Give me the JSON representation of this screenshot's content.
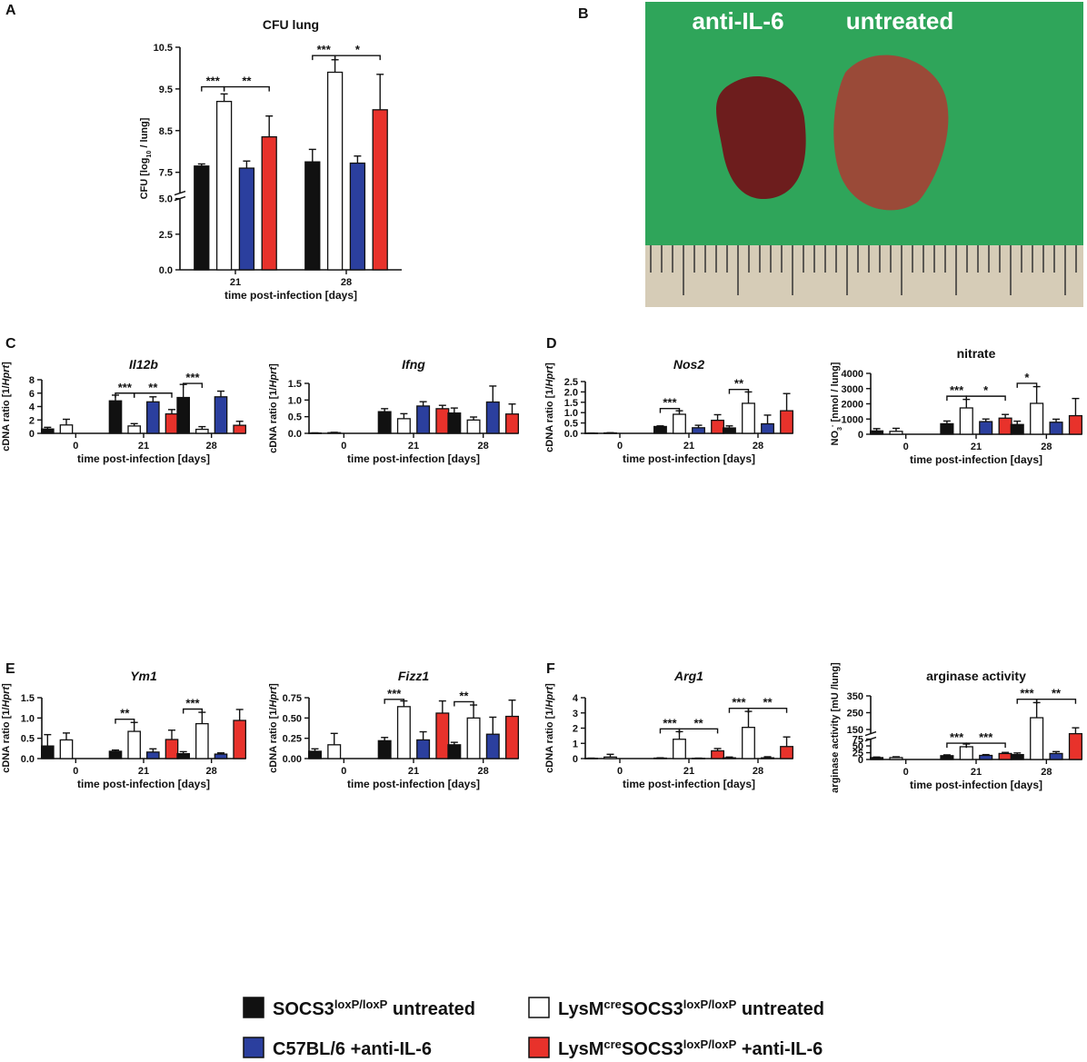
{
  "colors": {
    "ctrl": "#111111",
    "ko": "#ffffff",
    "wt": "#2b3f9e",
    "ko_il6": "#e8322b",
    "green": "#2fa55a",
    "ruler": "#d6ccb7",
    "tissue": "#6d1d1d"
  },
  "legend": [
    {
      "key": "ctrl",
      "text": "SOCS3loxP/loxP untreated",
      "parts": [
        [
          "SOCS3",
          ""
        ],
        [
          "loxP/loxP",
          "sup"
        ],
        [
          " untreated",
          ""
        ]
      ]
    },
    {
      "key": "ko",
      "text": "LysMcreSOCS3loxP/loxP untreated",
      "parts": [
        [
          "LysM",
          ""
        ],
        [
          "cre",
          "sup"
        ],
        [
          "SOCS3",
          ""
        ],
        [
          "loxP/loxP",
          "sup"
        ],
        [
          " untreated",
          ""
        ]
      ]
    },
    {
      "key": "wt",
      "text": "C57BL/6 +anti-IL-6",
      "parts": [
        [
          "C57BL/6 +anti-IL-6",
          ""
        ]
      ]
    },
    {
      "key": "ko_il6",
      "text": "LysMcreSOCS3loxP/loxP +anti-IL-6",
      "parts": [
        [
          "LysM",
          ""
        ],
        [
          "cre",
          "sup"
        ],
        [
          "SOCS3",
          ""
        ],
        [
          "loxP/loxP",
          "sup"
        ],
        [
          " +anti-IL-6",
          ""
        ]
      ]
    }
  ],
  "photo": {
    "panel": "B",
    "label_left": "anti-IL-6",
    "label_right": "untreated"
  },
  "chart_data": [
    {
      "id": "A",
      "panel": "A",
      "type": "bar",
      "title": "CFU lung",
      "italic_title": false,
      "ylabel": "CFU [log10 / lung]",
      "ylabel_parts": [
        [
          "CFU [log",
          ""
        ],
        [
          "10",
          "sub"
        ],
        [
          " / lung]",
          ""
        ]
      ],
      "xlabel": "time post-infection [days]",
      "categories": [
        "21",
        "28"
      ],
      "series_keys": [
        "ctrl",
        "ko",
        "wt",
        "ko_il6"
      ],
      "values": [
        [
          7.65,
          9.2,
          7.6,
          8.35
        ],
        [
          7.75,
          9.9,
          7.72,
          9.0
        ]
      ],
      "errors": [
        [
          0.05,
          0.18,
          0.17,
          0.5
        ],
        [
          0.3,
          0.3,
          0.17,
          0.85
        ]
      ],
      "ticks": [
        "0.0",
        "2.5",
        "5.0",
        "7.5",
        "8.5",
        "9.5",
        "10.5"
      ],
      "ylim": [
        0,
        10.5
      ],
      "broken_axis": [
        5.0,
        7.0
      ],
      "significance": [
        {
          "label": "***",
          "group": 0,
          "from": 0,
          "to": 1,
          "y": 9.55
        },
        {
          "label": "**",
          "group": 0,
          "from": 1,
          "to": 3,
          "y": 9.55
        },
        {
          "label": "***",
          "group": 1,
          "from": 0,
          "to": 1,
          "y": 10.3
        },
        {
          "label": "*",
          "group": 1,
          "from": 1,
          "to": 3,
          "y": 10.3
        }
      ]
    },
    {
      "id": "C1",
      "panel": "C",
      "type": "bar",
      "title": "Il12b",
      "italic_title": true,
      "ylabel": "cDNA ratio [1/Hprt]",
      "ylabel_parts": [
        [
          "cDNA ratio [1/",
          ""
        ],
        [
          "Hprt",
          "i"
        ],
        [
          "]",
          ""
        ]
      ],
      "xlabel": "time post-infection [days]",
      "categories": [
        "0",
        "21",
        "28"
      ],
      "series_keys": [
        "ctrl",
        "ko",
        "wt",
        "ko_il6"
      ],
      "values": [
        [
          0.65,
          1.25,
          null,
          null
        ],
        [
          4.85,
          1.1,
          4.7,
          2.9
        ],
        [
          5.35,
          0.6,
          5.45,
          1.2
        ]
      ],
      "errors": [
        [
          0.25,
          0.85,
          0,
          0
        ],
        [
          0.85,
          0.35,
          0.75,
          0.65
        ],
        [
          1.95,
          0.4,
          0.85,
          0.6
        ]
      ],
      "ticks": [
        "0",
        "2",
        "4",
        "6",
        "8"
      ],
      "ylim": [
        0,
        8
      ],
      "significance": [
        {
          "label": "***",
          "group": 1,
          "from": 0,
          "to": 1,
          "y": 6.0
        },
        {
          "label": "**",
          "group": 1,
          "from": 1,
          "to": 3,
          "y": 6.0
        },
        {
          "label": "***",
          "group": 2,
          "from": 0,
          "to": 1,
          "y": 7.45
        }
      ]
    },
    {
      "id": "C2",
      "panel": "",
      "type": "bar",
      "title": "Ifng",
      "italic_title": true,
      "ylabel": "cDNA ratio [1/Hprt]",
      "ylabel_parts": [
        [
          "cDNA ratio [1/",
          ""
        ],
        [
          "Hprt",
          "i"
        ],
        [
          "]",
          ""
        ]
      ],
      "xlabel": "time post-infection [days]",
      "categories": [
        "0",
        "21",
        "28"
      ],
      "series_keys": [
        "ctrl",
        "ko",
        "wt",
        "ko_il6"
      ],
      "values": [
        [
          0.01,
          0.02,
          null,
          null
        ],
        [
          0.65,
          0.44,
          0.82,
          0.74
        ],
        [
          0.61,
          0.4,
          0.94,
          0.58
        ]
      ],
      "errors": [
        [
          0.005,
          0.01,
          0,
          0
        ],
        [
          0.09,
          0.15,
          0.13,
          0.1
        ],
        [
          0.15,
          0.09,
          0.48,
          0.3
        ]
      ],
      "ticks": [
        "0.0",
        "0.5",
        "1.0",
        "1.5"
      ],
      "ylim": [
        0,
        1.5
      ],
      "significance": []
    },
    {
      "id": "D1",
      "panel": "D",
      "type": "bar",
      "title": "Nos2",
      "italic_title": true,
      "ylabel": "cDNA ratio [1/Hprt]",
      "ylabel_parts": [
        [
          "cDNA ratio [1/",
          ""
        ],
        [
          "Hprt",
          "i"
        ],
        [
          "]",
          ""
        ]
      ],
      "xlabel": "time post-infection [days]",
      "categories": [
        "0",
        "21",
        "28"
      ],
      "series_keys": [
        "ctrl",
        "ko",
        "wt",
        "ko_il6"
      ],
      "values": [
        [
          0.01,
          0.02,
          null,
          null
        ],
        [
          0.33,
          0.92,
          0.27,
          0.63
        ],
        [
          0.26,
          1.45,
          0.46,
          1.09
        ]
      ],
      "errors": [
        [
          0.005,
          0.01,
          0,
          0
        ],
        [
          0.03,
          0.17,
          0.12,
          0.27
        ],
        [
          0.1,
          0.55,
          0.42,
          0.83
        ]
      ],
      "ticks": [
        "0.0",
        "0.5",
        "1.0",
        "1.5",
        "2.0",
        "2.5"
      ],
      "ylim": [
        0,
        2.5
      ],
      "significance": [
        {
          "label": "***",
          "group": 1,
          "from": 0,
          "to": 1,
          "y": 1.2
        },
        {
          "label": "**",
          "group": 2,
          "from": 0,
          "to": 1,
          "y": 2.12
        }
      ]
    },
    {
      "id": "D2",
      "panel": "",
      "type": "bar",
      "title": "nitrate",
      "italic_title": false,
      "ylabel": "NO3- [nmol / lung]",
      "ylabel_parts": [
        [
          "NO",
          ""
        ],
        [
          "3",
          "sub"
        ],
        [
          "-",
          "sup"
        ],
        [
          " [nmol / lung]",
          ""
        ]
      ],
      "xlabel": "time post-infection [days]",
      "categories": [
        "0",
        "21",
        "28"
      ],
      "series_keys": [
        "ctrl",
        "ko",
        "wt",
        "ko_il6"
      ],
      "values": [
        [
          220,
          190,
          null,
          null
        ],
        [
          690,
          1730,
          830,
          1060
        ],
        [
          640,
          2030,
          790,
          1220
        ]
      ],
      "errors": [
        [
          150,
          200,
          0,
          0
        ],
        [
          180,
          560,
          170,
          240
        ],
        [
          220,
          1100,
          200,
          1130
        ]
      ],
      "ticks": [
        "0",
        "1000",
        "2000",
        "3000",
        "4000"
      ],
      "ylim": [
        0,
        4000
      ],
      "significance": [
        {
          "label": "***",
          "group": 1,
          "from": 0,
          "to": 1,
          "y": 2500
        },
        {
          "label": "*",
          "group": 1,
          "from": 1,
          "to": 3,
          "y": 2500
        },
        {
          "label": "*",
          "group": 2,
          "from": 0,
          "to": 1,
          "y": 3350
        }
      ]
    },
    {
      "id": "E1",
      "panel": "E",
      "type": "bar",
      "title": "Ym1",
      "italic_title": true,
      "ylabel": "cDNA ratio [1/Hprt]",
      "ylabel_parts": [
        [
          "cDNA ratio [1/",
          ""
        ],
        [
          "Hprt",
          "i"
        ],
        [
          "]",
          ""
        ]
      ],
      "xlabel": "time post-infection [days]",
      "categories": [
        "0",
        "21",
        "28"
      ],
      "series_keys": [
        "ctrl",
        "ko",
        "wt",
        "ko_il6"
      ],
      "values": [
        [
          0.31,
          0.46,
          null,
          null
        ],
        [
          0.18,
          0.67,
          0.16,
          0.47
        ],
        [
          0.12,
          0.86,
          0.11,
          0.94
        ]
      ],
      "errors": [
        [
          0.28,
          0.17,
          0,
          0
        ],
        [
          0.03,
          0.22,
          0.08,
          0.23
        ],
        [
          0.05,
          0.28,
          0.03,
          0.27
        ]
      ],
      "ticks": [
        "0.0",
        "0.5",
        "1.0",
        "1.5"
      ],
      "ylim": [
        0,
        1.5
      ],
      "significance": [
        {
          "label": "**",
          "group": 1,
          "from": 0,
          "to": 1,
          "y": 0.97
        },
        {
          "label": "***",
          "group": 2,
          "from": 0,
          "to": 1,
          "y": 1.22
        }
      ]
    },
    {
      "id": "E2",
      "panel": "",
      "type": "bar",
      "title": "Fizz1",
      "italic_title": true,
      "ylabel": "cDNA ratio [1/Hprt]",
      "ylabel_parts": [
        [
          "cDNA ratio [1/",
          ""
        ],
        [
          "Hprt",
          "i"
        ],
        [
          "]",
          ""
        ]
      ],
      "xlabel": "time post-infection [days]",
      "categories": [
        "0",
        "21",
        "28"
      ],
      "series_keys": [
        "ctrl",
        "ko",
        "wt",
        "ko_il6"
      ],
      "values": [
        [
          0.09,
          0.17,
          null,
          null
        ],
        [
          0.22,
          0.64,
          0.23,
          0.56
        ],
        [
          0.17,
          0.5,
          0.3,
          0.52
        ]
      ],
      "errors": [
        [
          0.03,
          0.14,
          0,
          0
        ],
        [
          0.04,
          0.07,
          0.1,
          0.15
        ],
        [
          0.03,
          0.16,
          0.21,
          0.2
        ]
      ],
      "ticks": [
        "0.00",
        "0.25",
        "0.50",
        "0.75"
      ],
      "ylim": [
        0,
        0.75
      ],
      "significance": [
        {
          "label": "***",
          "group": 1,
          "from": 0,
          "to": 1,
          "y": 0.73
        },
        {
          "label": "**",
          "group": 2,
          "from": 0,
          "to": 1,
          "y": 0.7
        }
      ]
    },
    {
      "id": "F1",
      "panel": "F",
      "type": "bar",
      "title": "Arg1",
      "italic_title": true,
      "ylabel": "cDNA ratio [1/Hprt]",
      "ylabel_parts": [
        [
          "cDNA ratio [1/",
          ""
        ],
        [
          "Hprt",
          "i"
        ],
        [
          "]",
          ""
        ]
      ],
      "xlabel": "time post-infection [days]",
      "categories": [
        "0",
        "21",
        "28"
      ],
      "series_keys": [
        "ctrl",
        "ko",
        "wt",
        "ko_il6"
      ],
      "values": [
        [
          0.02,
          0.1,
          null,
          null
        ],
        [
          0.03,
          1.27,
          0.02,
          0.51
        ],
        [
          0.05,
          2.05,
          0.05,
          0.79
        ]
      ],
      "errors": [
        [
          0.01,
          0.18,
          0,
          0
        ],
        [
          0.02,
          0.5,
          0.01,
          0.15
        ],
        [
          0.05,
          1.05,
          0.07,
          0.63
        ]
      ],
      "ticks": [
        "0",
        "1",
        "2",
        "3",
        "4"
      ],
      "ylim": [
        0,
        4
      ],
      "significance": [
        {
          "label": "***",
          "group": 1,
          "from": 0,
          "to": 1,
          "y": 1.95
        },
        {
          "label": "**",
          "group": 1,
          "from": 1,
          "to": 3,
          "y": 1.95
        },
        {
          "label": "***",
          "group": 2,
          "from": 0,
          "to": 1,
          "y": 3.3
        },
        {
          "label": "**",
          "group": 2,
          "from": 1,
          "to": 3,
          "y": 3.3
        }
      ]
    },
    {
      "id": "F2",
      "panel": "",
      "type": "bar",
      "title": "arginase activity",
      "italic_title": false,
      "ylabel": "arginase activity [mU /lung]",
      "ylabel_parts": [
        [
          "arginase activity [mU /lung]",
          ""
        ]
      ],
      "xlabel": "time post-infection [days]",
      "categories": [
        "0",
        "21",
        "28"
      ],
      "series_keys": [
        "ctrl",
        "ko",
        "wt",
        "ko_il6"
      ],
      "values": [
        [
          7,
          7,
          null,
          null
        ],
        [
          14,
          47,
          15,
          22
        ],
        [
          18,
          220,
          22,
          108
        ]
      ],
      "errors": [
        [
          2,
          3,
          0,
          0
        ],
        [
          3,
          10,
          3,
          4
        ],
        [
          6,
          90,
          7,
          52
        ]
      ],
      "ticks": [
        "0",
        "25",
        "50",
        "75",
        "150",
        "250",
        "350"
      ],
      "ylim": [
        0,
        350
      ],
      "broken_axis": [
        75,
        125
      ],
      "significance": [
        {
          "label": "***",
          "group": 1,
          "from": 0,
          "to": 1,
          "y": 60
        },
        {
          "label": "***",
          "group": 1,
          "from": 1,
          "to": 3,
          "y": 60
        },
        {
          "label": "***",
          "group": 2,
          "from": 0,
          "to": 1,
          "y": 330
        },
        {
          "label": "**",
          "group": 2,
          "from": 1,
          "to": 3,
          "y": 330
        }
      ]
    }
  ]
}
